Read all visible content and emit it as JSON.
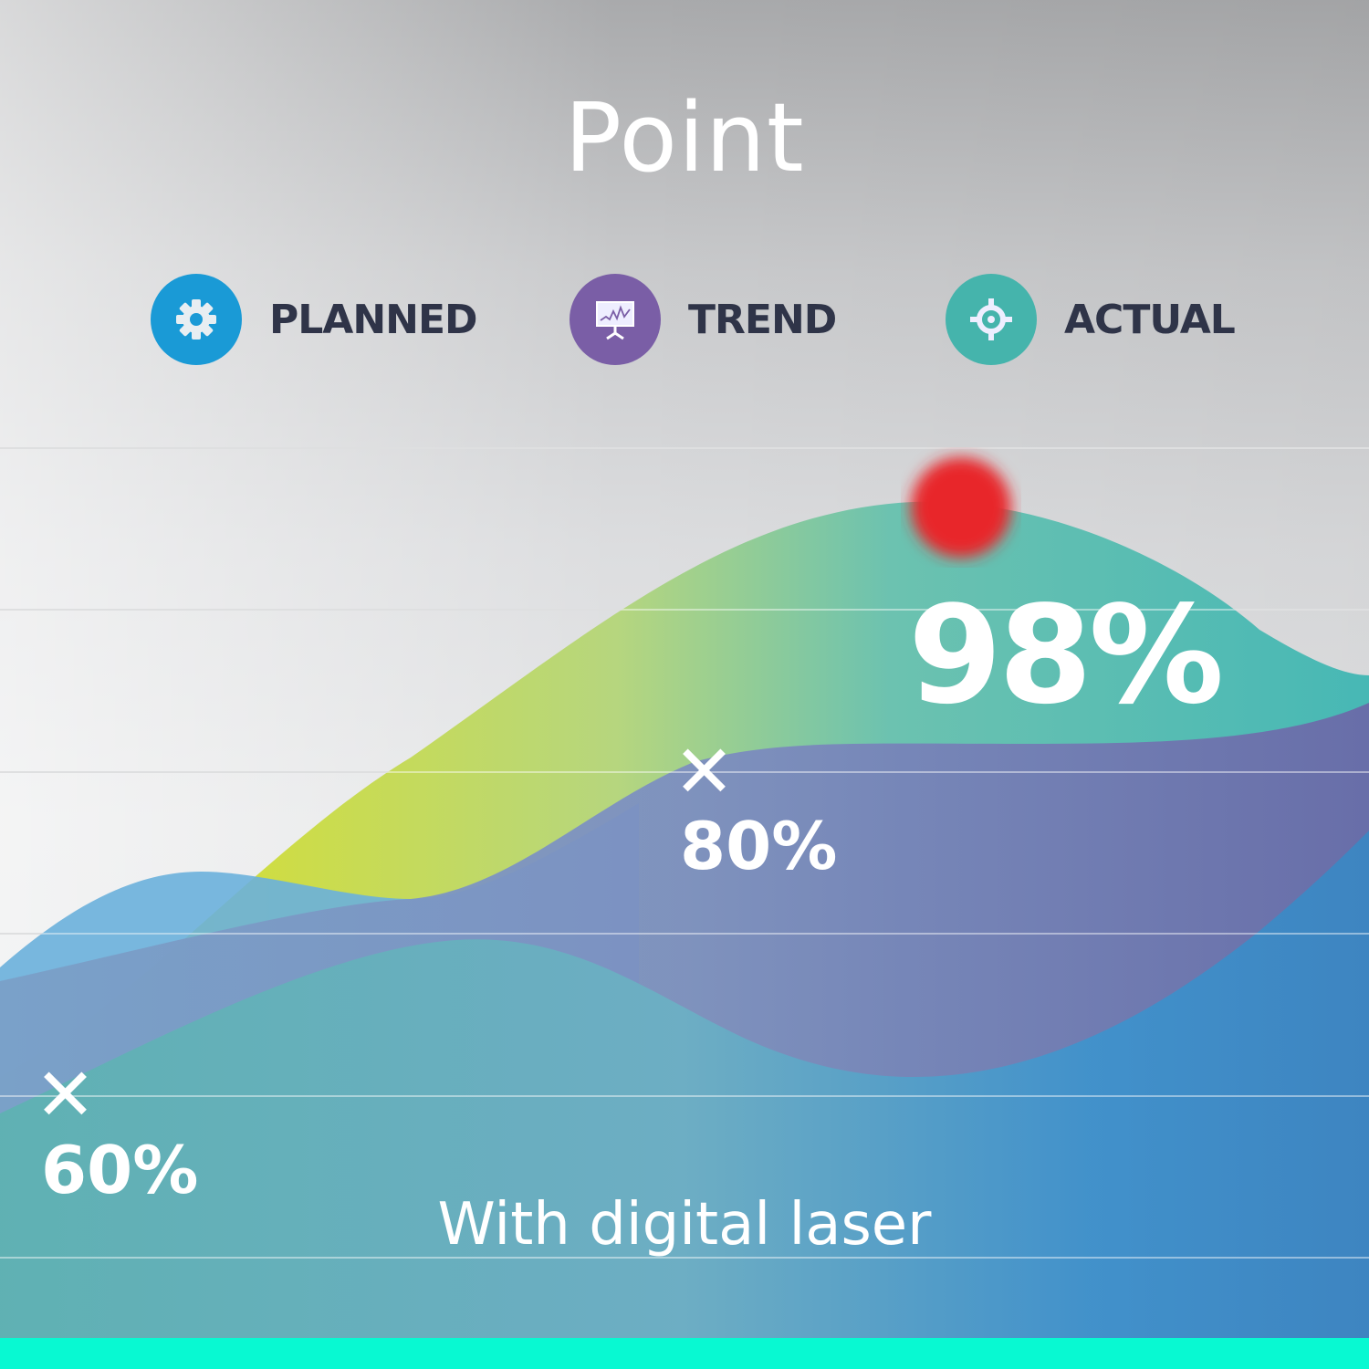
{
  "title": "Point",
  "subtitle": "With digital laser",
  "legend": [
    {
      "label": "PLANNED",
      "icon": "gear-icon",
      "color": "#1a9ad6"
    },
    {
      "label": "TREND",
      "icon": "presentation-chart-icon",
      "color": "#7a5ea6"
    },
    {
      "label": "ACTUAL",
      "icon": "crosshair-icon",
      "color": "#45b4ac"
    }
  ],
  "chart_data": {
    "type": "area",
    "legend": [
      "PLANNED",
      "TREND",
      "ACTUAL"
    ],
    "legend_placement": "top",
    "grid": true,
    "annotations": [
      {
        "marker": "x",
        "label": "60%"
      },
      {
        "marker": "x",
        "label": "80%"
      },
      {
        "marker": "laser-dot",
        "label": "98%",
        "color": "#e8262b"
      }
    ]
  },
  "accent_bar_color": "#08f9d2"
}
